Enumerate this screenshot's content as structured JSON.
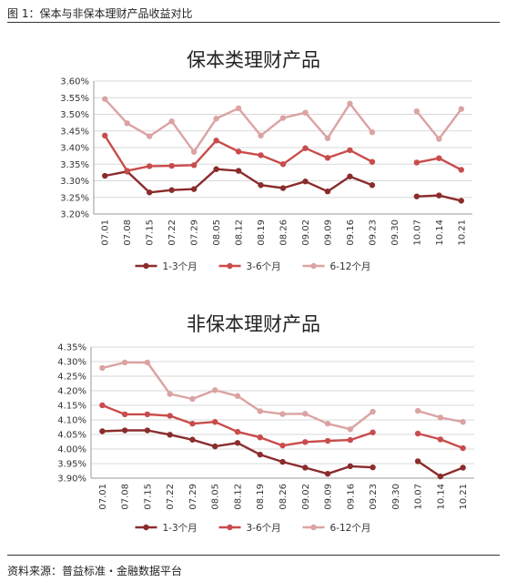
{
  "header": {
    "caption": "图 1：保本与非保本理财产品收益对比"
  },
  "footer": {
    "source": "资料来源：普益标准・金融数据平台"
  },
  "chart_data": [
    {
      "type": "line",
      "title": "保本类理财产品",
      "categories": [
        "07.01",
        "07.08",
        "07.15",
        "07.22",
        "07.29",
        "08.05",
        "08.12",
        "08.19",
        "08.26",
        "09.02",
        "09.09",
        "09.16",
        "09.23",
        "09.30",
        "10.07",
        "10.14",
        "10.21"
      ],
      "yticks": [
        "3.20%",
        "3.25%",
        "3.30%",
        "3.35%",
        "3.40%",
        "3.45%",
        "3.50%",
        "3.55%",
        "3.60%"
      ],
      "ylim": [
        3.2,
        3.6
      ],
      "legend": "bottom",
      "grid": true,
      "series": [
        {
          "name": "1-3个月",
          "color": "#8b2c2c",
          "values": [
            3.315,
            3.328,
            3.265,
            3.272,
            3.275,
            3.335,
            3.33,
            3.287,
            3.278,
            3.298,
            3.268,
            3.313,
            3.287,
            null,
            3.253,
            3.256,
            3.24
          ]
        },
        {
          "name": "3-6个月",
          "color": "#c94c4c",
          "values": [
            3.436,
            3.33,
            3.344,
            3.345,
            3.347,
            3.421,
            3.388,
            3.377,
            3.35,
            3.398,
            3.369,
            3.392,
            3.357,
            null,
            3.355,
            3.368,
            3.333
          ]
        },
        {
          "name": "6-12个月",
          "color": "#dba3a3",
          "values": [
            3.546,
            3.473,
            3.434,
            3.479,
            3.387,
            3.487,
            3.518,
            3.436,
            3.489,
            3.505,
            3.428,
            3.532,
            3.446,
            null,
            3.509,
            3.426,
            3.516
          ]
        }
      ]
    },
    {
      "type": "line",
      "title": "非保本理财产品",
      "categories": [
        "07.01",
        "07.08",
        "07.15",
        "07.22",
        "07.29",
        "08.05",
        "08.12",
        "08.19",
        "08.26",
        "09.02",
        "09.09",
        "09.16",
        "09.23",
        "09.30",
        "10.07",
        "10.14",
        "10.21"
      ],
      "yticks": [
        "3.90%",
        "3.95%",
        "4.00%",
        "4.05%",
        "4.10%",
        "4.15%",
        "4.20%",
        "4.25%",
        "4.30%",
        "4.35%"
      ],
      "ylim": [
        3.9,
        4.35
      ],
      "legend": "bottom",
      "grid": true,
      "series": [
        {
          "name": "1-3个月",
          "color": "#8b2c2c",
          "values": [
            4.061,
            4.064,
            4.064,
            4.049,
            4.032,
            4.009,
            4.021,
            3.981,
            3.956,
            3.936,
            3.915,
            3.941,
            3.937,
            null,
            3.958,
            3.906,
            3.936
          ]
        },
        {
          "name": "3-6个月",
          "color": "#c94c4c",
          "values": [
            4.15,
            4.119,
            4.119,
            4.114,
            4.087,
            4.093,
            4.059,
            4.04,
            4.012,
            4.024,
            4.028,
            4.031,
            4.057,
            null,
            4.053,
            4.033,
            4.003
          ]
        },
        {
          "name": "6-12个月",
          "color": "#dba3a3",
          "values": [
            4.278,
            4.297,
            4.297,
            4.189,
            4.172,
            4.202,
            4.182,
            4.13,
            4.12,
            4.121,
            4.087,
            4.068,
            4.128,
            null,
            4.131,
            4.108,
            4.093
          ]
        }
      ]
    }
  ]
}
